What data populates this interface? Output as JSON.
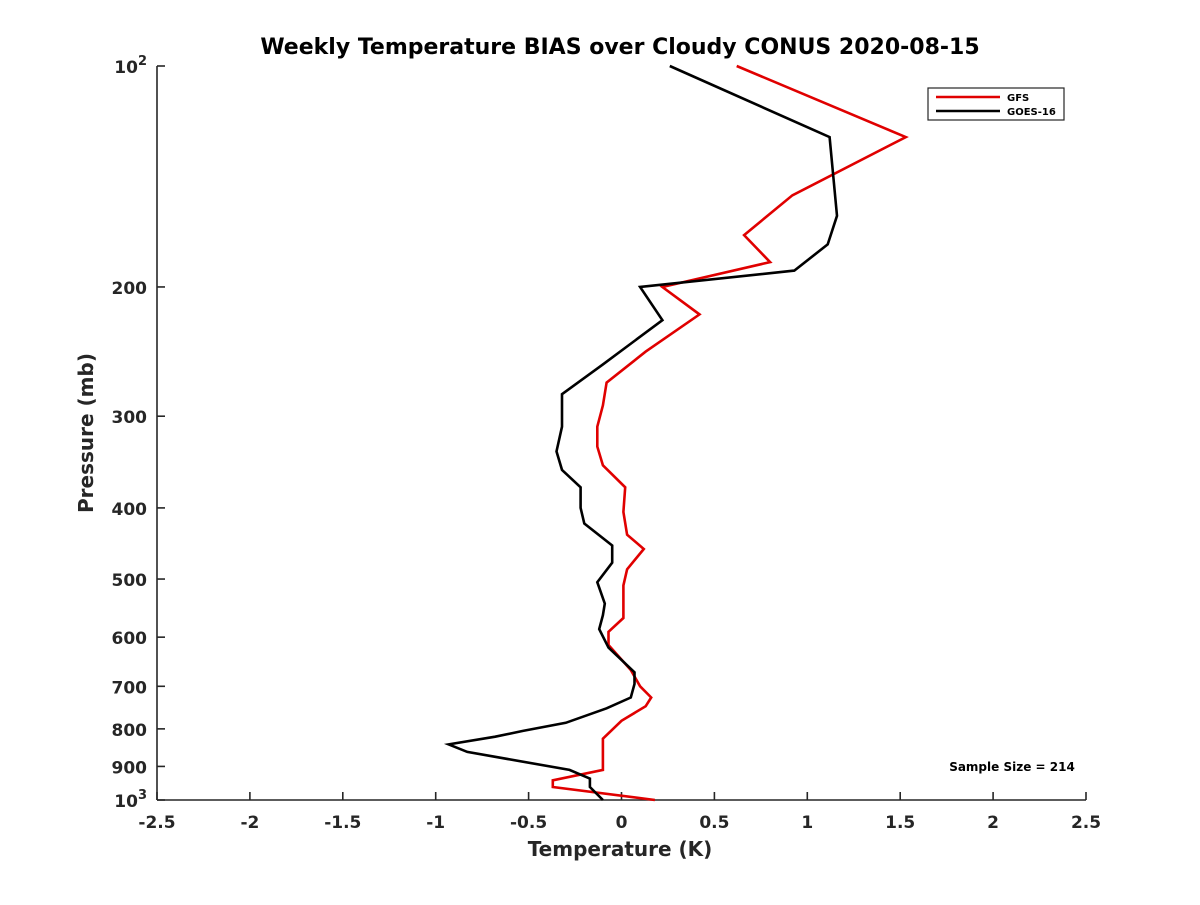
{
  "chart_data": {
    "type": "line",
    "title": "Weekly Temperature BIAS over Cloudy CONUS 2020-08-15",
    "xlabel": "Temperature (K)",
    "ylabel": "Pressure (mb)",
    "xlim": [
      -2.5,
      2.5
    ],
    "ylim": [
      100,
      1000
    ],
    "y_scale": "log",
    "y_reversed": true,
    "grid": false,
    "legend_position": "top-right",
    "x_ticks": [
      {
        "value": -2.5,
        "label": "-2.5"
      },
      {
        "value": -2,
        "label": "-2"
      },
      {
        "value": -1.5,
        "label": "-1.5"
      },
      {
        "value": -1,
        "label": "-1"
      },
      {
        "value": -0.5,
        "label": "-0.5"
      },
      {
        "value": 0,
        "label": "0"
      },
      {
        "value": 0.5,
        "label": "0.5"
      },
      {
        "value": 1,
        "label": "1"
      },
      {
        "value": 1.5,
        "label": "1.5"
      },
      {
        "value": 2,
        "label": "2"
      },
      {
        "value": 2.5,
        "label": "2.5"
      }
    ],
    "y_ticks": [
      {
        "value": 100,
        "label": "10",
        "sup": "2"
      },
      {
        "value": 200,
        "label": "200"
      },
      {
        "value": 300,
        "label": "300"
      },
      {
        "value": 400,
        "label": "400"
      },
      {
        "value": 500,
        "label": "500"
      },
      {
        "value": 600,
        "label": "600"
      },
      {
        "value": 700,
        "label": "700"
      },
      {
        "value": 800,
        "label": "800"
      },
      {
        "value": 900,
        "label": "900"
      },
      {
        "value": 1000,
        "label": "10",
        "sup": "3"
      }
    ],
    "annotation": "Sample Size = 214",
    "series": [
      {
        "name": "GFS",
        "color": "#e00000",
        "points": [
          [
            0.62,
            100
          ],
          [
            1.53,
            125
          ],
          [
            0.92,
            150
          ],
          [
            0.66,
            170
          ],
          [
            0.8,
            185
          ],
          [
            0.22,
            200
          ],
          [
            0.42,
            218
          ],
          [
            0.13,
            245
          ],
          [
            -0.08,
            270
          ],
          [
            -0.1,
            290
          ],
          [
            -0.13,
            310
          ],
          [
            -0.13,
            330
          ],
          [
            -0.1,
            350
          ],
          [
            0.02,
            375
          ],
          [
            0.01,
            405
          ],
          [
            0.03,
            435
          ],
          [
            0.12,
            455
          ],
          [
            0.03,
            485
          ],
          [
            0.01,
            510
          ],
          [
            0.01,
            540
          ],
          [
            0.01,
            565
          ],
          [
            -0.07,
            590
          ],
          [
            -0.07,
            615
          ],
          [
            0.05,
            665
          ],
          [
            0.1,
            700
          ],
          [
            0.16,
            725
          ],
          [
            0.13,
            745
          ],
          [
            0.0,
            780
          ],
          [
            -0.1,
            825
          ],
          [
            -0.1,
            870
          ],
          [
            -0.1,
            910
          ],
          [
            -0.37,
            940
          ],
          [
            -0.37,
            960
          ],
          [
            0.18,
            1000
          ]
        ]
      },
      {
        "name": "GOES-16",
        "color": "#000000",
        "points": [
          [
            0.26,
            100
          ],
          [
            1.12,
            125
          ],
          [
            1.16,
            160
          ],
          [
            1.11,
            175
          ],
          [
            0.93,
            190
          ],
          [
            0.1,
            200
          ],
          [
            0.22,
            222
          ],
          [
            -0.1,
            255
          ],
          [
            -0.32,
            280
          ],
          [
            -0.32,
            310
          ],
          [
            -0.35,
            335
          ],
          [
            -0.32,
            355
          ],
          [
            -0.22,
            375
          ],
          [
            -0.22,
            400
          ],
          [
            -0.2,
            420
          ],
          [
            -0.05,
            450
          ],
          [
            -0.05,
            475
          ],
          [
            -0.13,
            505
          ],
          [
            -0.09,
            540
          ],
          [
            -0.1,
            560
          ],
          [
            -0.12,
            585
          ],
          [
            -0.07,
            620
          ],
          [
            0.07,
            670
          ],
          [
            0.07,
            695
          ],
          [
            0.05,
            725
          ],
          [
            -0.08,
            750
          ],
          [
            -0.3,
            785
          ],
          [
            -0.53,
            805
          ],
          [
            -0.68,
            820
          ],
          [
            -0.93,
            840
          ],
          [
            -0.83,
            860
          ],
          [
            -0.28,
            910
          ],
          [
            -0.17,
            935
          ],
          [
            -0.17,
            960
          ],
          [
            -0.1,
            1000
          ]
        ]
      }
    ]
  }
}
